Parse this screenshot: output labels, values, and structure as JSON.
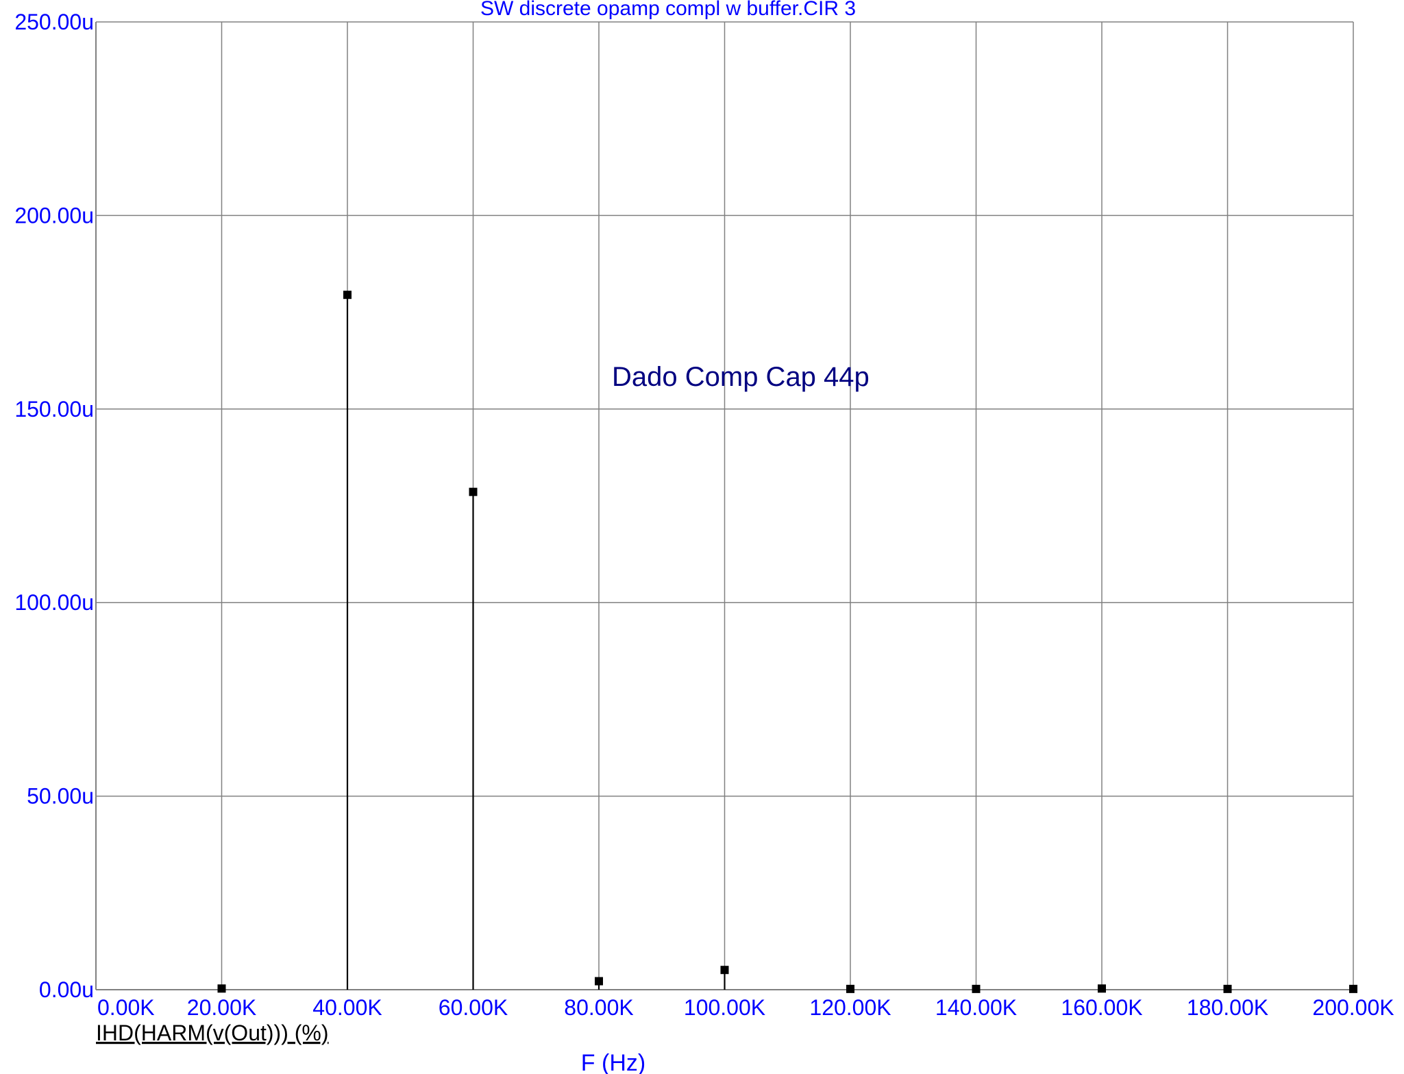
{
  "chart_data": {
    "type": "bar",
    "title": "SW discrete opamp compl w buffer.CIR 3",
    "xlabel": "F (Hz)",
    "series_label": "IHD(HARM(v(Out))) (%)",
    "annotation": "Dado Comp Cap 44p",
    "x_tick_labels": [
      "0.00K",
      "20.00K",
      "40.00K",
      "60.00K",
      "80.00K",
      "100.00K",
      "120.00K",
      "140.00K",
      "160.00K",
      "180.00K",
      "200.00K"
    ],
    "y_tick_labels": [
      "0.00u",
      "50.00u",
      "100.00u",
      "150.00u",
      "200.00u",
      "250.00u"
    ],
    "xlim": [
      0,
      200000
    ],
    "ylim": [
      0,
      250
    ],
    "y_unit_note": "u",
    "grid": true,
    "x": [
      20000,
      40000,
      60000,
      80000,
      100000,
      120000,
      140000,
      160000,
      180000,
      200000
    ],
    "values": [
      0.3,
      179.5,
      128.6,
      2.2,
      5.1,
      0.2,
      0.2,
      0.3,
      0.2,
      0.2
    ],
    "colors": {
      "grid": "#808080",
      "text": "#0000ff",
      "stem": "#000000",
      "annotation": "#000080"
    }
  }
}
